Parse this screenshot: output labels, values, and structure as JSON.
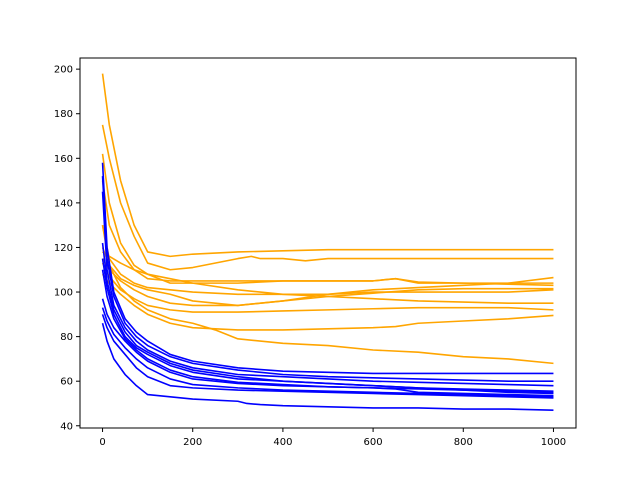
{
  "chart_data": {
    "type": "line",
    "title": "",
    "xlabel": "",
    "ylabel": "",
    "xlim": [
      -50,
      1050
    ],
    "ylim": [
      39,
      205
    ],
    "xticks": [
      0,
      200,
      400,
      600,
      800,
      1000
    ],
    "yticks": [
      40,
      60,
      80,
      100,
      120,
      140,
      160,
      180,
      200
    ],
    "grid": false,
    "legend": "none",
    "colors": {
      "orange": "#ffa500",
      "blue": "#0000ff"
    },
    "series": [
      {
        "group": "orange",
        "x": [
          0,
          15,
          40,
          70,
          100,
          150,
          200,
          300,
          400,
          500,
          600,
          700,
          800,
          900,
          1000
        ],
        "y": [
          198,
          175,
          150,
          130,
          118,
          116,
          117,
          118,
          118.5,
          119,
          119,
          119,
          119,
          119,
          119
        ]
      },
      {
        "group": "orange",
        "x": [
          0,
          15,
          40,
          70,
          100,
          150,
          200,
          300,
          330,
          350,
          400,
          450,
          500,
          600,
          700,
          800,
          900,
          1000
        ],
        "y": [
          175,
          160,
          140,
          125,
          113,
          110,
          111,
          115,
          116,
          115,
          115,
          114,
          115,
          115,
          115,
          115,
          115,
          115
        ]
      },
      {
        "group": "orange",
        "x": [
          0,
          15,
          40,
          70,
          100,
          150,
          200,
          250,
          300,
          400,
          500,
          600,
          650,
          700,
          800,
          900,
          1000
        ],
        "y": [
          162,
          140,
          122,
          112,
          108,
          104,
          104,
          104,
          104,
          105,
          105,
          105,
          106,
          104.5,
          104,
          103.5,
          103
        ]
      },
      {
        "group": "orange",
        "x": [
          0,
          15,
          40,
          70,
          100,
          150,
          200,
          250,
          300,
          350,
          400,
          500,
          600,
          650,
          700,
          800,
          900,
          1000
        ],
        "y": [
          150,
          130,
          118,
          110,
          106,
          105,
          105,
          105,
          105,
          105,
          105,
          105,
          105,
          106,
          104,
          104,
          104,
          104
        ]
      },
      {
        "group": "orange",
        "x": [
          0,
          15,
          40,
          70,
          100,
          150,
          200,
          300,
          400,
          500,
          600,
          700,
          800,
          900,
          1000
        ],
        "y": [
          130,
          115,
          108,
          104,
          102,
          101,
          100,
          99,
          99,
          99,
          100,
          100,
          100,
          100,
          101
        ]
      },
      {
        "group": "orange",
        "x": [
          0,
          15,
          40,
          70,
          100,
          150,
          200,
          300,
          400,
          500,
          600,
          700,
          800,
          900,
          1000
        ],
        "y": [
          118,
          116,
          113,
          110,
          108,
          106,
          104,
          101,
          99,
          98,
          97,
          96,
          95.5,
          95,
          95
        ]
      },
      {
        "group": "orange",
        "x": [
          0,
          15,
          40,
          70,
          100,
          150,
          200,
          300,
          400,
          500,
          600,
          700,
          800,
          900,
          1000
        ],
        "y": [
          120,
          112,
          106,
          103,
          101,
          99,
          96,
          94,
          96,
          98,
          99.5,
          101,
          101.5,
          101.5,
          101.5
        ]
      },
      {
        "group": "orange",
        "x": [
          0,
          15,
          40,
          70,
          100,
          150,
          200,
          300,
          400,
          500,
          600,
          700,
          800,
          900,
          1000
        ],
        "y": [
          115,
          110,
          105,
          101,
          98,
          95,
          94,
          94,
          96,
          99,
          101,
          102,
          103,
          104,
          106.5
        ]
      },
      {
        "group": "orange",
        "x": [
          0,
          15,
          40,
          70,
          100,
          150,
          200,
          300,
          400,
          500,
          600,
          700,
          800,
          900,
          1000
        ],
        "y": [
          113,
          107,
          101,
          97,
          94,
          92,
          91,
          91,
          91.5,
          92,
          92.5,
          93,
          93,
          93,
          92
        ]
      },
      {
        "group": "orange",
        "x": [
          0,
          15,
          40,
          70,
          100,
          150,
          200,
          250,
          300,
          400,
          500,
          600,
          650,
          700,
          800,
          900,
          1000
        ],
        "y": [
          108,
          104,
          99,
          94,
          90,
          86,
          84,
          83.5,
          83,
          83,
          83.5,
          84,
          84.5,
          86,
          87,
          88,
          89.5
        ]
      },
      {
        "group": "orange",
        "x": [
          0,
          15,
          40,
          70,
          100,
          150,
          200,
          250,
          300,
          400,
          500,
          600,
          700,
          800,
          900,
          1000
        ],
        "y": [
          130,
          112,
          102,
          96,
          92,
          88,
          86,
          83,
          79,
          77,
          76,
          74,
          73,
          71,
          70,
          68
        ]
      },
      {
        "group": "blue",
        "x": [
          0,
          10,
          25,
          50,
          75,
          100,
          150,
          200,
          300,
          400,
          500,
          600,
          700,
          800,
          900,
          1000
        ],
        "y": [
          158,
          120,
          100,
          88,
          82,
          78,
          72,
          69,
          66,
          64.5,
          64,
          63.5,
          63.5,
          63.5,
          63.5,
          63.5
        ]
      },
      {
        "group": "blue",
        "x": [
          0,
          10,
          25,
          50,
          75,
          100,
          150,
          200,
          300,
          400,
          500,
          600,
          700,
          800,
          900,
          1000
        ],
        "y": [
          152,
          115,
          98,
          86,
          80,
          76,
          71,
          68,
          65,
          63,
          62,
          61.5,
          61,
          60.5,
          60,
          60
        ]
      },
      {
        "group": "blue",
        "x": [
          0,
          10,
          25,
          50,
          75,
          100,
          150,
          200,
          300,
          400,
          500,
          600,
          700,
          800,
          900,
          1000
        ],
        "y": [
          145,
          110,
          94,
          84,
          78,
          74,
          69,
          66,
          63,
          62,
          61,
          60,
          59.5,
          59,
          58.5,
          58
        ]
      },
      {
        "group": "blue",
        "x": [
          0,
          10,
          25,
          50,
          75,
          100,
          150,
          200,
          300,
          400,
          500,
          600,
          700,
          800,
          900,
          1000
        ],
        "y": [
          122,
          105,
          92,
          82,
          76,
          73,
          68,
          65,
          62,
          60,
          59,
          58,
          57,
          56.5,
          56,
          55.5
        ]
      },
      {
        "group": "blue",
        "x": [
          0,
          10,
          25,
          50,
          75,
          100,
          150,
          200,
          300,
          400,
          500,
          600,
          700,
          800,
          900,
          1000
        ],
        "y": [
          115,
          102,
          90,
          80,
          75,
          72,
          67,
          64,
          61,
          60,
          59,
          58,
          57,
          56,
          55,
          54.5
        ]
      },
      {
        "group": "blue",
        "x": [
          0,
          10,
          25,
          50,
          75,
          100,
          150,
          200,
          300,
          400,
          500,
          600,
          650,
          700,
          800,
          900,
          1000
        ],
        "y": [
          110,
          98,
          88,
          79,
          74,
          70,
          65,
          62,
          59.5,
          58.5,
          57.5,
          57,
          56.5,
          55,
          54.5,
          54,
          53.5
        ]
      },
      {
        "group": "blue",
        "x": [
          0,
          10,
          25,
          50,
          75,
          100,
          150,
          200,
          300,
          400,
          500,
          600,
          700,
          800,
          900,
          1000
        ],
        "y": [
          97,
          90,
          84,
          78,
          73,
          69,
          64,
          61,
          59,
          58,
          57.5,
          57,
          56.5,
          56,
          55.5,
          55
        ]
      },
      {
        "group": "blue",
        "x": [
          0,
          10,
          25,
          50,
          75,
          100,
          150,
          200,
          300,
          400,
          500,
          600,
          700,
          800,
          900,
          1000
        ],
        "y": [
          93,
          87,
          81,
          75,
          70,
          66,
          61,
          58.5,
          57,
          56,
          55.5,
          55,
          54.5,
          54,
          53.5,
          53
        ]
      },
      {
        "group": "blue",
        "x": [
          0,
          10,
          25,
          50,
          75,
          100,
          150,
          200,
          300,
          400,
          500,
          600,
          700,
          800,
          900,
          1000
        ],
        "y": [
          90,
          84,
          78,
          72,
          66,
          62,
          58,
          57,
          56,
          55.5,
          55,
          54.5,
          54,
          53.5,
          53,
          52.5
        ]
      },
      {
        "group": "blue",
        "x": [
          0,
          10,
          25,
          50,
          75,
          100,
          150,
          200,
          300,
          320,
          350,
          400,
          500,
          600,
          700,
          800,
          900,
          1000
        ],
        "y": [
          86,
          78,
          70,
          63,
          58,
          54,
          53,
          52,
          51,
          50,
          49.5,
          49,
          48.5,
          48,
          48,
          47.5,
          47.5,
          47
        ]
      }
    ]
  }
}
